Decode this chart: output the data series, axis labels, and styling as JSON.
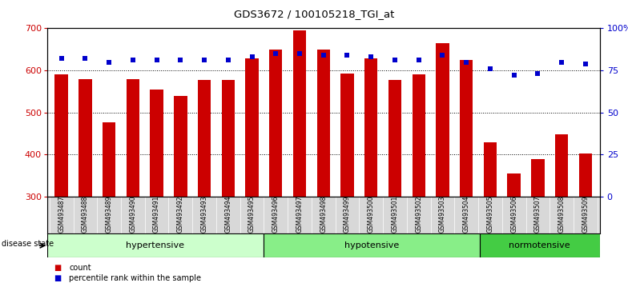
{
  "title": "GDS3672 / 100105218_TGI_at",
  "samples": [
    "GSM493487",
    "GSM493488",
    "GSM493489",
    "GSM493490",
    "GSM493491",
    "GSM493492",
    "GSM493493",
    "GSM493494",
    "GSM493495",
    "GSM493496",
    "GSM493497",
    "GSM493498",
    "GSM493499",
    "GSM493500",
    "GSM493501",
    "GSM493502",
    "GSM493503",
    "GSM493504",
    "GSM493505",
    "GSM493506",
    "GSM493507",
    "GSM493508",
    "GSM493509"
  ],
  "counts": [
    590,
    580,
    477,
    580,
    555,
    540,
    578,
    578,
    628,
    650,
    695,
    650,
    592,
    628,
    577,
    591,
    665,
    625,
    429,
    355,
    389,
    448,
    403
  ],
  "percentiles": [
    82,
    82,
    80,
    81,
    81,
    81,
    81,
    81,
    83,
    85,
    85,
    84,
    84,
    83,
    81,
    81,
    84,
    80,
    76,
    72,
    73,
    80,
    79
  ],
  "groups": [
    {
      "label": "hypertensive",
      "start": 0,
      "end": 9,
      "color": "#ccffcc",
      "border": "#228822"
    },
    {
      "label": "hypotensive",
      "start": 9,
      "end": 18,
      "color": "#88ee88",
      "border": "#228822"
    },
    {
      "label": "normotensive",
      "start": 18,
      "end": 23,
      "color": "#44cc44",
      "border": "#228822"
    }
  ],
  "ylim_left": [
    300,
    700
  ],
  "ylim_right": [
    0,
    100
  ],
  "yticks_left": [
    300,
    400,
    500,
    600,
    700
  ],
  "yticks_right": [
    0,
    25,
    50,
    75,
    100
  ],
  "ytick_right_labels": [
    "0",
    "25",
    "50",
    "75",
    "100%"
  ],
  "gridlines": [
    400,
    500,
    600
  ],
  "bar_color": "#cc0000",
  "dot_color": "#0000cc",
  "label_count": "count",
  "label_percentile": "percentile rank within the sample",
  "disease_state_label": "disease state"
}
